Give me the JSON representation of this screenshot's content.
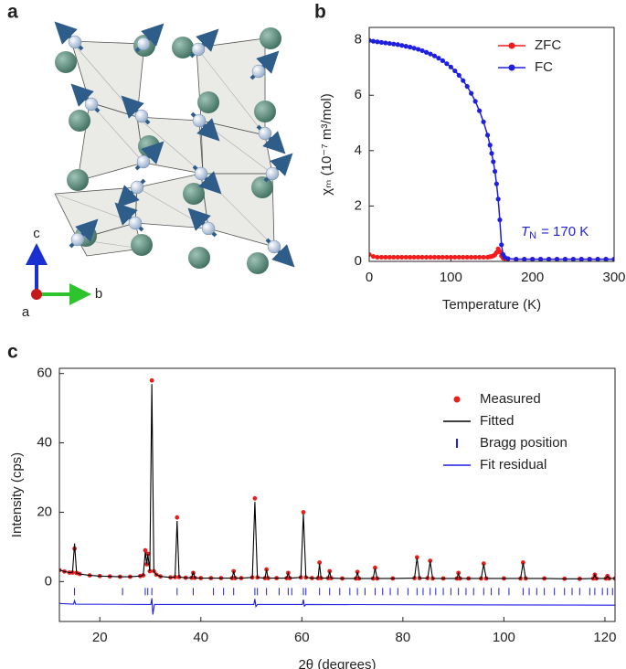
{
  "panel_labels": [
    "a",
    "b",
    "c"
  ],
  "structure": {
    "axes": [
      "c",
      "b",
      "a"
    ]
  },
  "chart_data": [
    {
      "type": "line",
      "xlabel": "Temperature (K)",
      "ylabel": "χₘ (10⁻⁷ m³/mol)",
      "x": [
        0,
        5,
        10,
        15,
        20,
        25,
        30,
        35,
        40,
        45,
        50,
        55,
        60,
        65,
        70,
        75,
        80,
        85,
        90,
        95,
        100,
        105,
        110,
        115,
        120,
        125,
        130,
        135,
        140,
        145,
        148,
        150,
        152,
        154,
        156,
        158,
        160,
        162,
        164,
        166,
        170,
        180,
        190,
        200,
        210,
        220,
        230,
        240,
        250,
        260,
        270,
        280,
        290,
        300
      ],
      "xlim": [
        0,
        300
      ],
      "xticks": [
        0,
        100,
        200,
        300
      ],
      "ylim": [
        0,
        8.45
      ],
      "yticks": [
        0,
        2,
        4,
        6,
        8
      ],
      "legend": "upper right",
      "annotation": {
        "parts": [
          "T",
          "N",
          "= 170 K"
        ],
        "color": "#1f1fe0"
      },
      "series": [
        {
          "name": "ZFC",
          "color": "#f21d1d",
          "style": "line+dots",
          "values": [
            0.25,
            0.18,
            0.15,
            0.15,
            0.15,
            0.15,
            0.15,
            0.15,
            0.15,
            0.15,
            0.15,
            0.15,
            0.15,
            0.15,
            0.15,
            0.15,
            0.15,
            0.15,
            0.15,
            0.15,
            0.15,
            0.15,
            0.15,
            0.15,
            0.15,
            0.15,
            0.15,
            0.15,
            0.15,
            0.15,
            0.17,
            0.18,
            0.2,
            0.24,
            0.32,
            0.45,
            0.35,
            0.2,
            0.12,
            0.1,
            0.09,
            0.08,
            0.08,
            0.08,
            0.08,
            0.08,
            0.08,
            0.08,
            0.08,
            0.08,
            0.08,
            0.08,
            0.08,
            0.08
          ]
        },
        {
          "name": "FC",
          "color": "#1f1fe0",
          "style": "line+dots",
          "values": [
            7.98,
            7.95,
            7.93,
            7.91,
            7.89,
            7.87,
            7.85,
            7.83,
            7.8,
            7.77,
            7.74,
            7.7,
            7.66,
            7.61,
            7.55,
            7.49,
            7.42,
            7.34,
            7.25,
            7.14,
            7.02,
            6.88,
            6.72,
            6.53,
            6.32,
            6.07,
            5.78,
            5.44,
            5.04,
            4.56,
            4.2,
            3.9,
            3.6,
            3.25,
            2.8,
            2.25,
            1.5,
            0.6,
            0.25,
            0.15,
            0.1,
            0.08,
            0.08,
            0.08,
            0.08,
            0.08,
            0.08,
            0.08,
            0.08,
            0.08,
            0.08,
            0.08,
            0.08,
            0.08
          ]
        }
      ]
    },
    {
      "type": "line",
      "xlabel": "2θ (degrees)",
      "ylabel": "Intensity (cps)",
      "x": [
        12,
        13,
        14,
        14.6,
        15,
        15.4,
        16,
        18,
        20,
        22,
        24,
        26,
        28,
        28.6,
        29,
        29.3,
        29.5,
        29.9,
        30.3,
        30.7,
        31.2,
        32,
        34,
        34.9,
        35.3,
        35.7,
        37,
        38.2,
        38.5,
        38.8,
        40,
        42,
        44,
        46.2,
        46.5,
        46.8,
        48,
        50.2,
        50.7,
        51.2,
        52.7,
        53,
        53.3,
        55,
        57,
        57.3,
        57.6,
        59.8,
        60.3,
        60.8,
        62,
        63.2,
        63.5,
        63.8,
        65.2,
        65.5,
        65.8,
        68,
        70.7,
        71,
        71.3,
        74.1,
        74.5,
        74.9,
        78,
        82.3,
        82.8,
        83.3,
        84.9,
        85.4,
        85.9,
        88,
        90.7,
        91,
        91.3,
        93,
        95.5,
        96,
        96.5,
        100,
        103.3,
        103.8,
        104.3,
        108,
        112,
        115,
        117.7,
        118,
        118.3,
        120.2,
        120.5,
        120.8,
        122
      ],
      "xlim": [
        12,
        122
      ],
      "xticks": [
        20,
        40,
        60,
        80,
        100,
        120
      ],
      "ylim": [
        -11.5,
        61.5
      ],
      "yticks": [
        0,
        20,
        40,
        60
      ],
      "legend": "upper right",
      "series": [
        {
          "name": "Measured",
          "color": "#e8201c",
          "style": "dots",
          "values": [
            3.3,
            2.9,
            2.6,
            2.6,
            9.5,
            2.5,
            2.2,
            1.8,
            1.6,
            1.5,
            1.4,
            1.4,
            1.6,
            1.8,
            9,
            5,
            8,
            3,
            58,
            3,
            2,
            1.5,
            1.2,
            1.3,
            18.5,
            1.3,
            1.1,
            1.1,
            2.5,
            1.1,
            1,
            1,
            1,
            1,
            3,
            1,
            1,
            1.2,
            24,
            1.2,
            1,
            3.5,
            1,
            1,
            1,
            2.5,
            1,
            1.2,
            20,
            1.2,
            1,
            1,
            5.5,
            1,
            1,
            3,
            1,
            0.9,
            0.9,
            2.8,
            0.9,
            0.9,
            4,
            0.9,
            0.9,
            1,
            7,
            1,
            1,
            6,
            0.9,
            0.9,
            0.9,
            2.5,
            0.9,
            0.9,
            0.9,
            5.2,
            0.9,
            0.9,
            0.9,
            5.5,
            0.9,
            0.9,
            0.8,
            0.8,
            0.9,
            2,
            0.9,
            0.9,
            1.6,
            0.9,
            0.9
          ]
        },
        {
          "name": "Fitted",
          "color": "#000000",
          "style": "line",
          "values": [
            3.4,
            2.9,
            2.6,
            2.7,
            11,
            2.5,
            2.2,
            1.8,
            1.6,
            1.5,
            1.4,
            1.4,
            1.6,
            1.8,
            8.5,
            5,
            8,
            3,
            57,
            3,
            2,
            1.5,
            1.2,
            1.3,
            17.5,
            1.3,
            1.1,
            1.1,
            2.8,
            1.1,
            1,
            1,
            1,
            1,
            3,
            1,
            1,
            1.2,
            23,
            1.2,
            1,
            3.4,
            1,
            1,
            1,
            2.4,
            1,
            1.2,
            19.5,
            1.2,
            1,
            1,
            5.2,
            1,
            1,
            2.9,
            1,
            0.9,
            0.9,
            2.7,
            0.9,
            0.9,
            3.8,
            0.9,
            0.9,
            1,
            6.8,
            1,
            1,
            5.8,
            0.9,
            0.9,
            0.9,
            2.3,
            0.9,
            0.9,
            0.9,
            5,
            0.9,
            0.9,
            0.9,
            5.4,
            0.9,
            0.9,
            0.8,
            0.8,
            0.9,
            2,
            0.9,
            0.9,
            1.6,
            0.9,
            0.9
          ]
        },
        {
          "name": "Bragg position",
          "color": "#1f1fe0",
          "style": "ticks",
          "x": [
            15,
            24.5,
            29,
            29.5,
            30.3,
            35.3,
            38.5,
            42.5,
            44.5,
            46.5,
            50.7,
            51.2,
            53,
            55.5,
            57.3,
            58,
            60.3,
            60.8,
            63.5,
            65.5,
            67.5,
            69.5,
            71,
            72.5,
            74.5,
            76,
            77.5,
            79,
            81,
            82.8,
            84,
            85.4,
            86.5,
            88,
            89.5,
            91,
            92.5,
            94,
            96,
            97.5,
            99,
            101,
            103.8,
            105,
            106.5,
            108,
            110,
            112,
            113.5,
            115,
            117,
            118,
            119.5,
            120.5,
            121.5
          ]
        },
        {
          "name": "Fit residual",
          "color": "#1f1fe0",
          "style": "line",
          "x": [
            12,
            14.8,
            15,
            15.2,
            29,
            30.1,
            30.3,
            30.5,
            30.8,
            50.5,
            50.7,
            50.9,
            51.2,
            60.1,
            60.3,
            60.5,
            60.8,
            122
          ],
          "values": [
            -6.3,
            -6.5,
            -5.5,
            -6.5,
            -6.6,
            -6.6,
            -4.8,
            -9.5,
            -6.6,
            -6.6,
            -5,
            -7.2,
            -6.6,
            -6.6,
            -5.2,
            -7.1,
            -6.6,
            -6.8
          ]
        }
      ]
    }
  ]
}
